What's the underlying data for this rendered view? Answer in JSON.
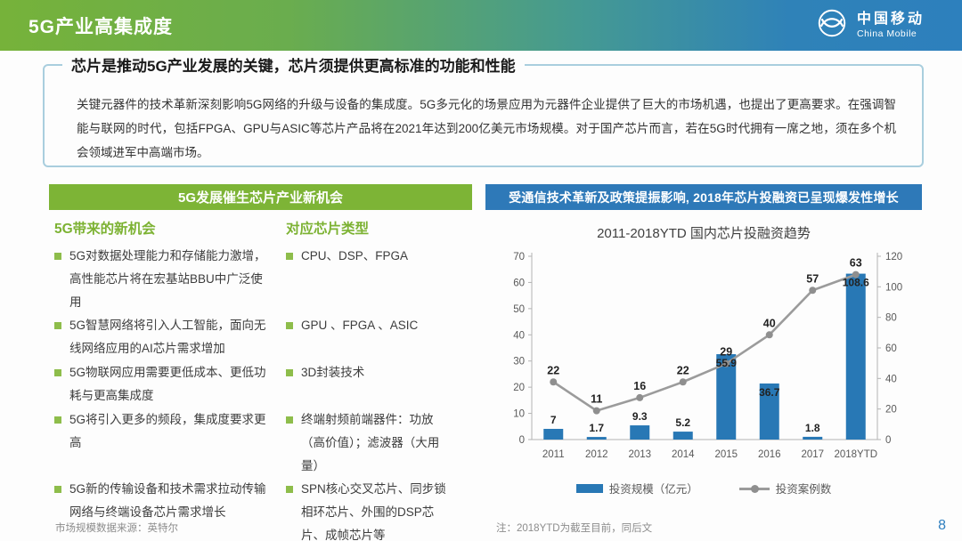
{
  "header": {
    "title": "5G产业高集成度",
    "logo_cn": "中国移动",
    "logo_en": "China Mobile"
  },
  "key_message": {
    "headline": "芯片是推动5G产业发展的关键，芯片须提供更高标准的功能和性能",
    "body": "关键元器件的技术革新深刻影响5G网络的升级与设备的集成度。5G多元化的场景应用为元器件企业提供了巨大的市场机遇，也提出了更高要求。在强调智能与联网的时代，包括FPGA、GPU与ASIC等芯片产品将在2021年达到200亿美元市场规模。对于国产芯片而言，若在5G时代拥有一席之地，须在多个机会领域进军中高端市场。"
  },
  "left_panel": {
    "title": "5G发展催生芯片产业新机会",
    "col1_header": "5G带来的新机会",
    "col2_header": "对应芯片类型",
    "opportunities": [
      "5G对数据处理能力和存储能力激增，高性能芯片将在宏基站BBU中广泛使用",
      "5G智慧网络将引入人工智能，面向无线网络应用的AI芯片需求增加",
      "5G物联网应用需要更低成本、更低功耗与更高集成度",
      "5G将引入更多的频段，集成度要求更高",
      "5G新的传输设备和技术需求拉动传输网络与终端设备芯片需求增长"
    ],
    "chip_types": [
      "CPU、DSP、FPGA",
      "GPU 、FPGA 、ASIC",
      "3D封装技术",
      "终端射频前端器件：功放（高价值）；滤波器（大用量）",
      "SPN核心交叉芯片、同步锁相环芯片、外围的DSP芯片、成帧芯片等"
    ]
  },
  "right_panel": {
    "title": "受通信技术革新及政策提振影响, 2018年芯片投融资已呈现爆发性增长"
  },
  "chart_data": {
    "type": "bar",
    "subtype": "bar-line-combo",
    "title": "2011-2018YTD 国内芯片投融资趋势",
    "categories": [
      "2011",
      "2012",
      "2013",
      "2014",
      "2015",
      "2016",
      "2017",
      "2018YTD"
    ],
    "series": [
      {
        "name": "投资规模（亿元）",
        "type": "bar",
        "axis": "right",
        "color": "#2878b5",
        "values": [
          7,
          1.7,
          9.3,
          5.2,
          55.9,
          36.7,
          1.8,
          108.6
        ]
      },
      {
        "name": "投资案例数",
        "type": "line",
        "axis": "left",
        "color": "#9b9b9b",
        "values": [
          22,
          11,
          16,
          22,
          29,
          40,
          57,
          63
        ]
      }
    ],
    "left_axis": {
      "min": 0,
      "max": 70,
      "ticks": [
        0,
        10,
        20,
        30,
        40,
        50,
        60,
        70
      ]
    },
    "right_axis": {
      "min": 0,
      "max": 120,
      "ticks": [
        0,
        20,
        40,
        60,
        80,
        100,
        120
      ]
    },
    "grid": false,
    "legend_position": "bottom"
  },
  "footers": {
    "left_note": "市场规模数据来源：英特尔",
    "right_note": "注：2018YTD为截至目前，同后文",
    "page_number": "8"
  },
  "colors": {
    "accent_green": "#7db436",
    "accent_blue": "#2e79b8",
    "bar_blue": "#2878b5",
    "line_gray": "#9b9b9b",
    "box_border": "#a9cede"
  }
}
